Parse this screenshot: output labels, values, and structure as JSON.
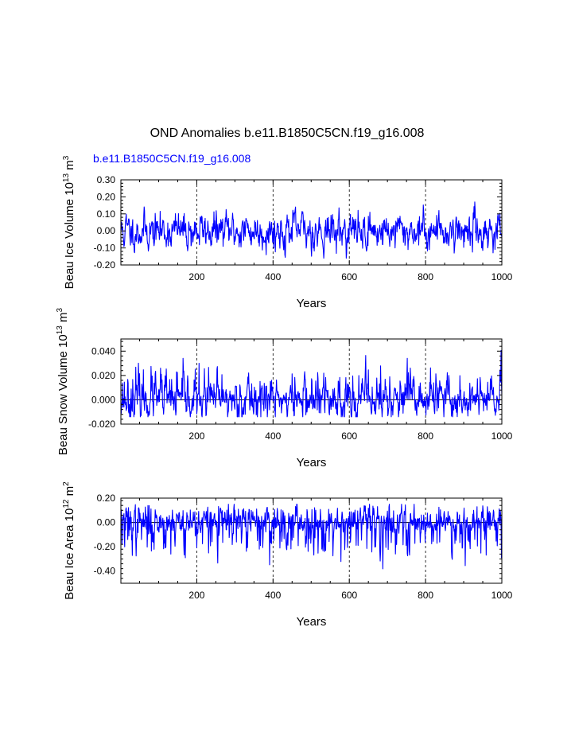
{
  "title": "OND Anomalies b.e11.B1850C5CN.f19_g16.008",
  "colors": {
    "series": "#0000ff",
    "axis": "#000000",
    "grid": "#000000"
  },
  "chart_data": [
    {
      "type": "line",
      "legend": "b.e11.B1850C5CN.f19_g16.008",
      "ylabel": {
        "main": "Beau Ice Volume 10",
        "exp": "13",
        "mid": " m",
        "exp2": "3"
      },
      "xlabel": "Years",
      "xlim": [
        1,
        1000
      ],
      "ylim": [
        -0.2,
        0.3
      ],
      "xticks": [
        200,
        400,
        600,
        800,
        1000
      ],
      "xtick_labels": [
        "200",
        "400",
        "600",
        "800",
        "1000"
      ],
      "yticks": [
        -0.2,
        -0.1,
        0.0,
        0.1,
        0.2,
        0.3
      ],
      "ytick_labels": [
        "-0.20",
        "-0.10",
        "0.00",
        "0.10",
        "0.20",
        "0.30"
      ],
      "vgrid": [
        200,
        400,
        600,
        800
      ],
      "hline": null,
      "series": {
        "name": "b.e11.B1850C5CN.f19_g16.008",
        "seed": 11,
        "mean": 0.0,
        "std": 0.055,
        "ar": 0.55,
        "min": -0.16,
        "max": 0.21
      }
    },
    {
      "type": "line",
      "legend": "",
      "ylabel": {
        "main": "Beau Snow Volume 10",
        "exp": "13",
        "mid": " m",
        "exp2": "3"
      },
      "xlabel": "Years",
      "xlim": [
        1,
        1000
      ],
      "ylim": [
        -0.02,
        0.05
      ],
      "xticks": [
        200,
        400,
        600,
        800,
        1000
      ],
      "xtick_labels": [
        "200",
        "400",
        "600",
        "800",
        "1000"
      ],
      "yticks": [
        -0.02,
        0.0,
        0.02,
        0.04
      ],
      "ytick_labels": [
        "-0.020",
        "0.000",
        "0.020",
        "0.040"
      ],
      "vgrid": [
        200,
        400,
        600,
        800
      ],
      "hline": 0.0,
      "series": {
        "name": "b.e11.B1850C5CN.f19_g16.008",
        "seed": 23,
        "mean": 0.0,
        "std": 0.008,
        "ar": 0.45,
        "min": -0.014,
        "max": 0.044,
        "skew": 1
      }
    },
    {
      "type": "line",
      "legend": "",
      "ylabel": {
        "main": "Beau Ice Area 10",
        "exp": "12",
        "mid": " m",
        "exp2": "2"
      },
      "xlabel": "Years",
      "xlim": [
        1,
        1000
      ],
      "ylim": [
        -0.5,
        0.2
      ],
      "xticks": [
        200,
        400,
        600,
        800,
        1000
      ],
      "xtick_labels": [
        "200",
        "400",
        "600",
        "800",
        "1000"
      ],
      "yticks": [
        -0.4,
        -0.2,
        0.0,
        0.2
      ],
      "ytick_labels": [
        "-0.40",
        "-0.20",
        "0.00",
        "0.20"
      ],
      "vgrid": [
        200,
        400,
        600,
        800
      ],
      "hline": 0.0,
      "series": {
        "name": "b.e11.B1850C5CN.f19_g16.008",
        "seed": 37,
        "mean": 0.0,
        "std": 0.07,
        "ar": 0.3,
        "min": -0.41,
        "max": 0.15,
        "skew": -1
      }
    }
  ]
}
